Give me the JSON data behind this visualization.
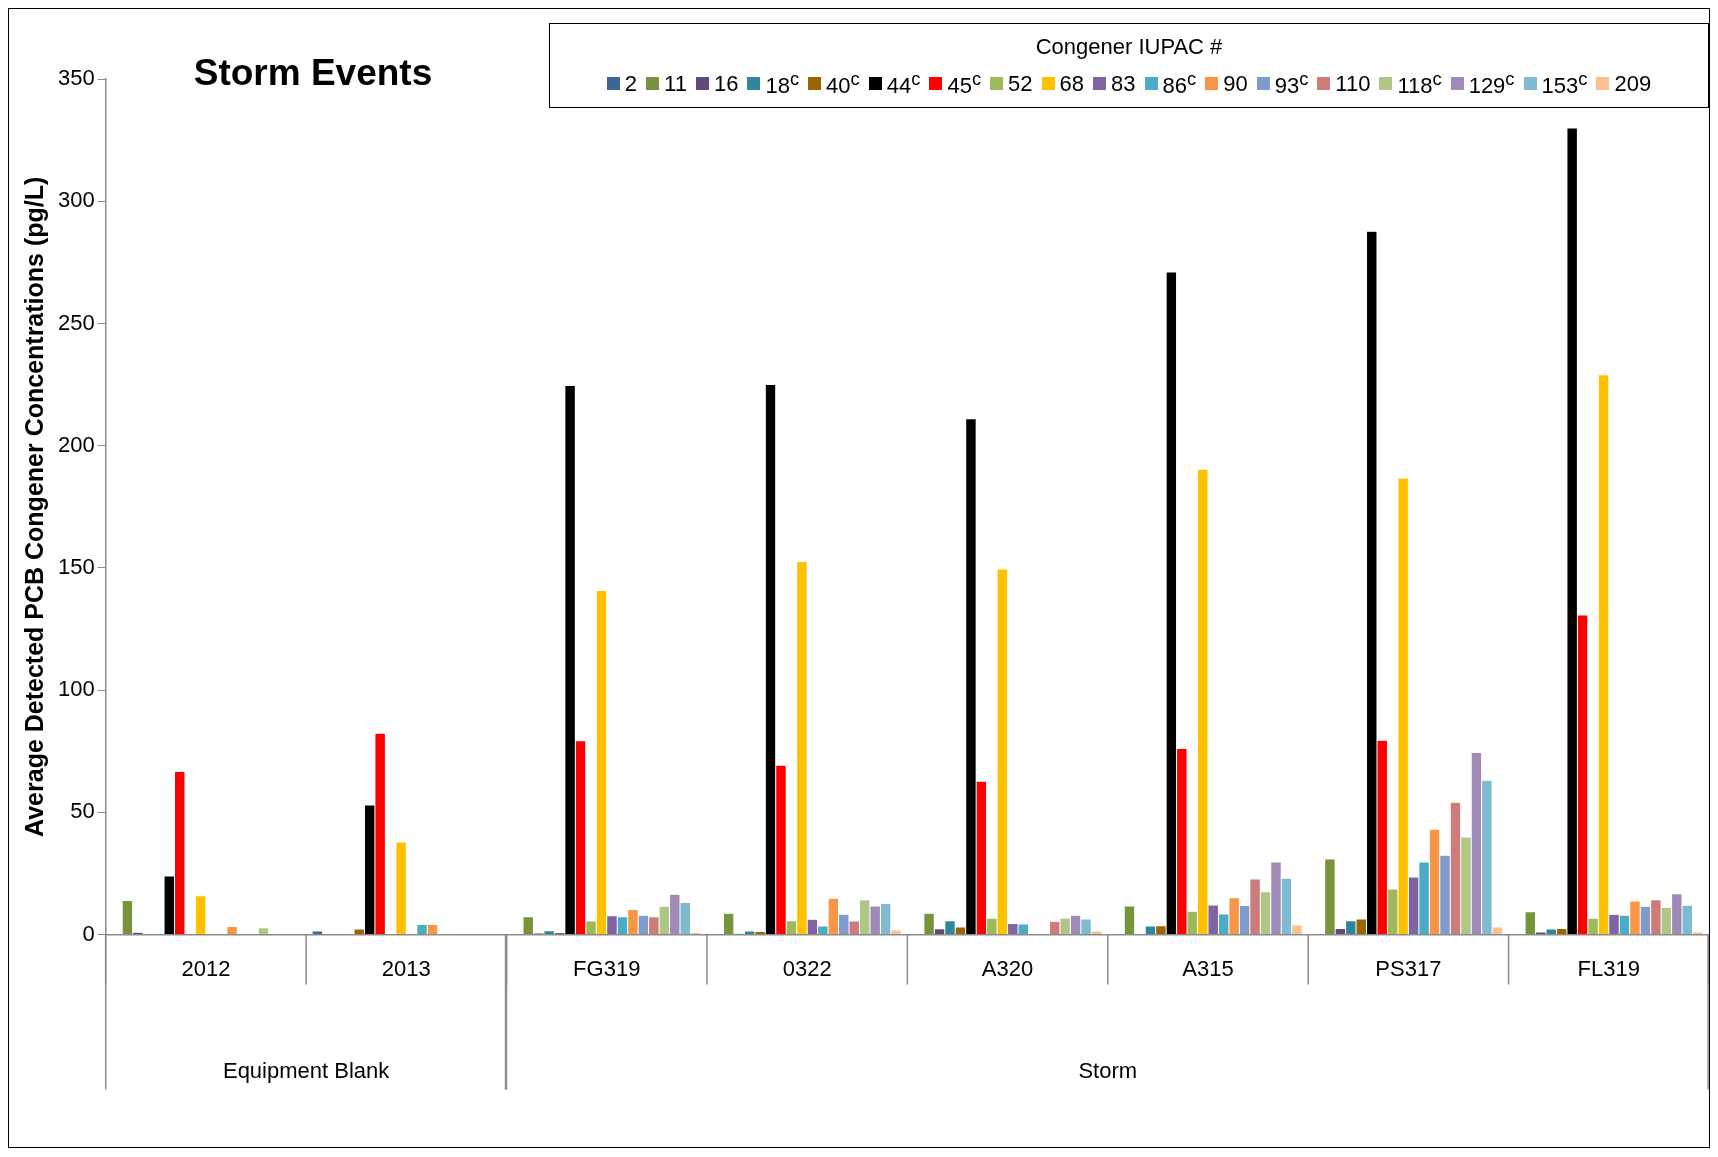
{
  "chart_data": {
    "type": "bar",
    "title": "Storm Events",
    "ylabel": "Average Detected PCB Congener Concentrations (pg/L)",
    "legend_title": "Congener IUPAC #",
    "legend": "top right",
    "categories": [
      "2012",
      "2013",
      "FG319",
      "0322",
      "A320",
      "A315",
      "PS317",
      "FL319"
    ],
    "annotations": [
      "Equipment Blank",
      "Storm"
    ],
    "ylim": [
      0,
      350
    ],
    "yticks": [
      0,
      50,
      100,
      150,
      200,
      250,
      300,
      350
    ],
    "series": [
      {
        "name": "2",
        "color": "#3f6598",
        "values": [
          null,
          1.5,
          null,
          null,
          null,
          null,
          null,
          null
        ]
      },
      {
        "name": "11",
        "color": "#77933c",
        "values": [
          14,
          null,
          7.3,
          8.7,
          8.7,
          11.7,
          30.9,
          9.3
        ]
      },
      {
        "name": "16",
        "color": "#604a7b",
        "values": [
          1,
          null,
          0.7,
          0.4,
          2.4,
          0.3,
          2.5,
          1.1
        ]
      },
      {
        "name": "18$^{c}$",
        "color": "#31859c",
        "values": [
          null,
          null,
          1.6,
          1.5,
          5.7,
          3.5,
          5.7,
          2.3
        ]
      },
      {
        "name": "40$^{c}$",
        "color": "#9c6500",
        "values": [
          null,
          2.3,
          0.9,
          1.3,
          3.1,
          3.6,
          6.4,
          2.5
        ]
      },
      {
        "name": "44$^{c}$",
        "color": "#000000",
        "values": [
          24,
          53,
          224.6,
          225,
          211,
          271,
          287.7,
          330
        ]
      },
      {
        "name": "45$^{c}$",
        "color": "#ff0000",
        "values": [
          66.7,
          82.4,
          79.3,
          69.3,
          62.7,
          76.1,
          79.5,
          130.7
        ]
      },
      {
        "name": "52",
        "color": "#9bbb59",
        "values": [
          null,
          null,
          5.6,
          5.7,
          6.7,
          9.6,
          18.7,
          6.7
        ]
      },
      {
        "name": "68",
        "color": "#ffc000",
        "values": [
          15.9,
          37.9,
          140.8,
          152.6,
          149.6,
          190.4,
          186.8,
          229
        ]
      },
      {
        "name": "83",
        "color": "#8064a2",
        "values": [
          null,
          null,
          7.7,
          6.3,
          4.5,
          12.1,
          23.6,
          8.3
        ]
      },
      {
        "name": "86$^{c}$",
        "color": "#4bacc6",
        "values": [
          null,
          4.1,
          7.3,
          3.5,
          4.3,
          8.4,
          29.7,
          7.9
        ]
      },
      {
        "name": "90",
        "color": "#f79646",
        "values": [
          3.3,
          4.1,
          10.3,
          14.9,
          null,
          15.1,
          43.1,
          13.7
        ]
      },
      {
        "name": "93$^{c}$",
        "color": "#7f9bcb",
        "values": [
          null,
          null,
          7.9,
          8.3,
          null,
          11.9,
          32.5,
          11.6
        ]
      },
      {
        "name": "110",
        "color": "#cd7b7b",
        "values": [
          null,
          null,
          7.3,
          5.6,
          5.5,
          22.7,
          54.1,
          14.3
        ]
      },
      {
        "name": "118$^{c}$",
        "color": "#afc785",
        "values": [
          2.8,
          null,
          11.6,
          14.3,
          6.8,
          17.5,
          39.9,
          11.1
        ]
      },
      {
        "name": "129$^{c}$",
        "color": "#a08bb8",
        "values": [
          null,
          null,
          16.5,
          11.7,
          7.9,
          29.7,
          74.5,
          16.7
        ]
      },
      {
        "name": "153$^{c}$",
        "color": "#7fbbd0",
        "values": [
          null,
          null,
          13.1,
          12.7,
          6.4,
          23.1,
          63.1,
          12
        ]
      },
      {
        "name": "209",
        "color": "#fac090",
        "values": [
          null,
          null,
          0.9,
          1.9,
          1.5,
          3.9,
          3.1,
          1.1
        ]
      }
    ]
  }
}
